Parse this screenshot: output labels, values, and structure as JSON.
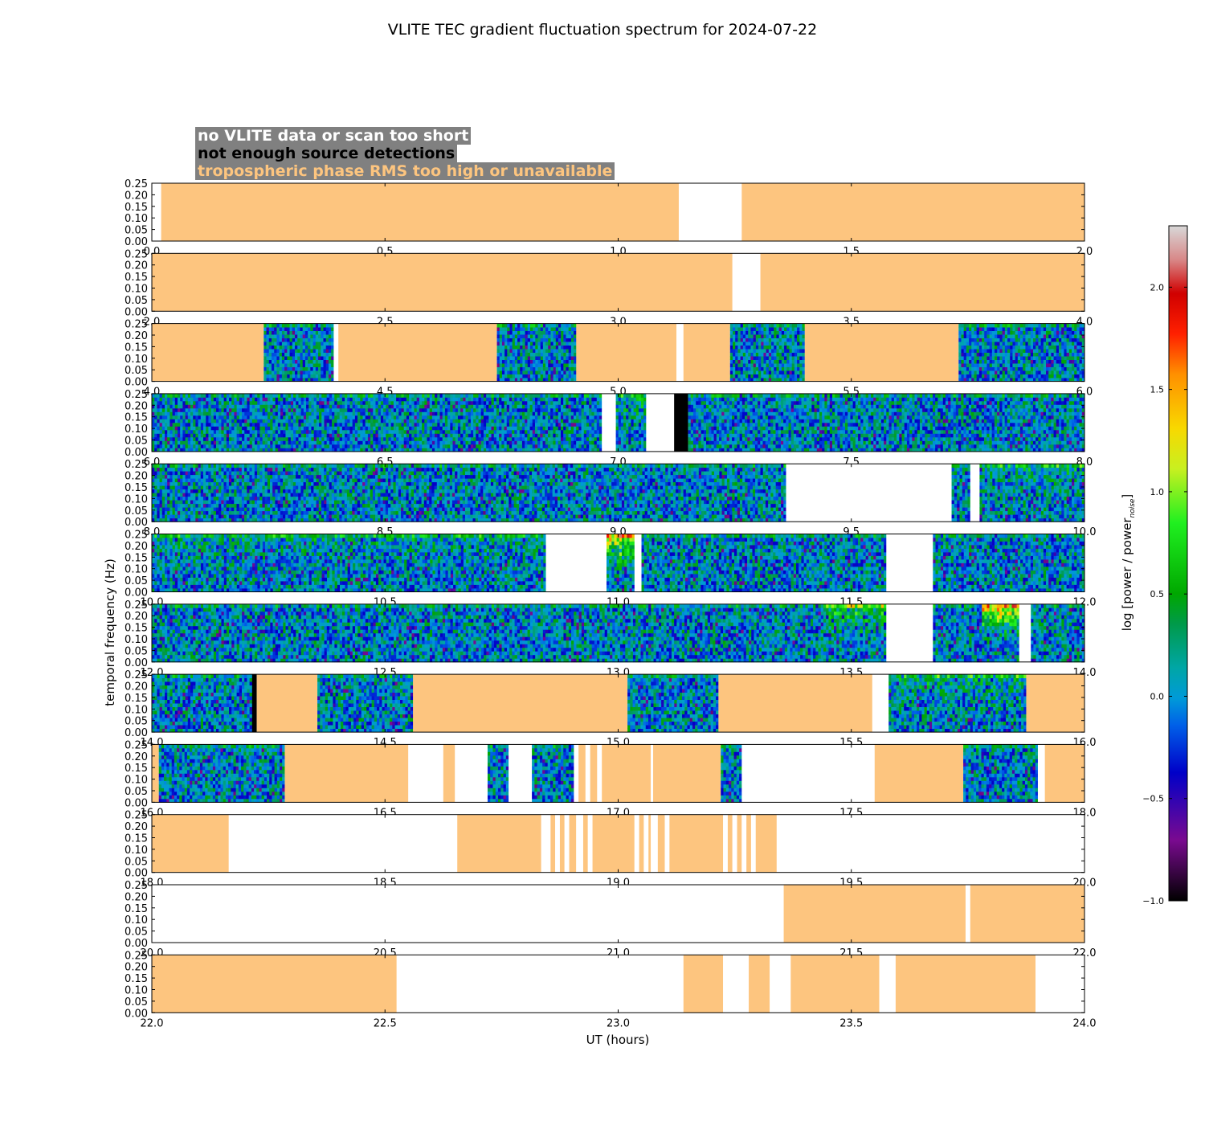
{
  "chart_data": {
    "type": "heatmap",
    "title": "VLITE TEC gradient fluctuation spectrum for 2024-07-22",
    "xlabel": "UT (hours)",
    "ylabel": "temporal frequency (Hz)",
    "colorbar_label": "log [power / power",
    "colorbar_label_sub": "noise",
    "colorbar_label_end": "]",
    "colorbar_range": [
      -1.0,
      2.3
    ],
    "colorbar_ticks": [
      "−1.0",
      "−0.5",
      "0.0",
      "0.5",
      "1.0",
      "1.5",
      "2.0"
    ],
    "colorbar_tick_values": [
      -1.0,
      -0.5,
      0.0,
      0.5,
      1.0,
      1.5,
      2.0
    ],
    "ylim": [
      0,
      0.25
    ],
    "y_ticks": [
      "0.00",
      "0.05",
      "0.10",
      "0.15",
      "0.20",
      "0.25"
    ],
    "legend": [
      {
        "label": "no VLITE data or scan too short",
        "color": "#ffffff"
      },
      {
        "label": "not enough source detections",
        "color": "#000000"
      },
      {
        "label": "tropospheric phase RMS too high or unavailable",
        "color": "#fdc57f"
      }
    ],
    "panels": [
      {
        "xlim": [
          0,
          2
        ],
        "xticks": [
          "0.0",
          "0.5",
          "1.0",
          "1.5",
          "2.0"
        ],
        "segments": [
          [
            0,
            0.02,
            "n"
          ],
          [
            0.02,
            1.13,
            "t"
          ],
          [
            1.13,
            1.265,
            "n"
          ],
          [
            1.265,
            2.0,
            "t"
          ]
        ]
      },
      {
        "xlim": [
          2,
          4
        ],
        "xticks": [
          "2.0",
          "2.5",
          "3.0",
          "3.5",
          "4.0"
        ],
        "segments": [
          [
            2.0,
            3.245,
            "t"
          ],
          [
            3.245,
            3.305,
            "n"
          ],
          [
            3.305,
            4.0,
            "t"
          ]
        ]
      },
      {
        "xlim": [
          4,
          6
        ],
        "xticks": [
          "4.0",
          "4.5",
          "5.0",
          "5.5",
          "6.0"
        ],
        "segments": [
          [
            4.0,
            4.24,
            "t"
          ],
          [
            4.24,
            4.39,
            "d"
          ],
          [
            4.39,
            4.4,
            "n"
          ],
          [
            4.4,
            4.74,
            "t"
          ],
          [
            4.74,
            4.91,
            "d"
          ],
          [
            4.91,
            5.125,
            "t"
          ],
          [
            5.125,
            5.14,
            "n"
          ],
          [
            5.14,
            5.24,
            "t"
          ],
          [
            5.24,
            5.4,
            "d"
          ],
          [
            5.4,
            5.73,
            "t"
          ],
          [
            5.73,
            6.0,
            "d"
          ]
        ]
      },
      {
        "xlim": [
          6,
          8
        ],
        "xticks": [
          "6.0",
          "6.5",
          "7.0",
          "7.5",
          "8.0"
        ],
        "segments": [
          [
            6.0,
            6.965,
            "d"
          ],
          [
            6.965,
            6.995,
            "n"
          ],
          [
            6.995,
            7.06,
            "d",
            0.4
          ],
          [
            7.06,
            7.12,
            "n"
          ],
          [
            7.12,
            7.15,
            "k"
          ],
          [
            7.15,
            8.0,
            "d"
          ]
        ]
      },
      {
        "xlim": [
          8,
          10
        ],
        "xticks": [
          "8.0",
          "8.5",
          "9.0",
          "9.5",
          "10.0"
        ],
        "segments": [
          [
            8.0,
            9.36,
            "d"
          ],
          [
            9.36,
            9.715,
            "n"
          ],
          [
            9.715,
            9.755,
            "d"
          ],
          [
            9.755,
            9.775,
            "n"
          ],
          [
            9.775,
            10.0,
            "d",
            0.3
          ]
        ]
      },
      {
        "xlim": [
          10,
          12
        ],
        "xticks": [
          "10.0",
          "10.5",
          "11.0",
          "11.5",
          "12.0"
        ],
        "segments": [
          [
            10.0,
            10.845,
            "d",
            0.2
          ],
          [
            10.845,
            10.975,
            "n"
          ],
          [
            10.975,
            11.035,
            "d",
            1.5
          ],
          [
            11.035,
            11.05,
            "n"
          ],
          [
            11.05,
            11.575,
            "d"
          ],
          [
            11.575,
            11.675,
            "n"
          ],
          [
            11.675,
            12.0,
            "d"
          ]
        ]
      },
      {
        "xlim": [
          12,
          14
        ],
        "xticks": [
          "12.0",
          "12.5",
          "13.0",
          "13.5",
          "14.0"
        ],
        "segments": [
          [
            12.0,
            13.44,
            "d"
          ],
          [
            13.44,
            13.575,
            "d",
            0.7
          ],
          [
            13.575,
            13.675,
            "n"
          ],
          [
            13.675,
            13.78,
            "d"
          ],
          [
            13.78,
            13.86,
            "d",
            1.5
          ],
          [
            13.86,
            13.885,
            "n"
          ],
          [
            13.885,
            14.0,
            "d"
          ]
        ]
      },
      {
        "xlim": [
          14,
          16
        ],
        "xticks": [
          "14.0",
          "14.5",
          "15.0",
          "15.5",
          "16.0"
        ],
        "segments": [
          [
            14.0,
            14.215,
            "d"
          ],
          [
            14.215,
            14.225,
            "k"
          ],
          [
            14.225,
            14.355,
            "t"
          ],
          [
            14.355,
            14.56,
            "d"
          ],
          [
            14.56,
            15.02,
            "t"
          ],
          [
            15.02,
            15.215,
            "d"
          ],
          [
            15.215,
            15.545,
            "t"
          ],
          [
            15.545,
            15.58,
            "n"
          ],
          [
            15.58,
            15.875,
            "d",
            0.3
          ],
          [
            15.875,
            16.0,
            "t"
          ]
        ]
      },
      {
        "xlim": [
          16,
          18
        ],
        "xticks": [
          "16.0",
          "16.5",
          "17.0",
          "17.5",
          "18.0"
        ],
        "segments": [
          [
            16.0,
            16.015,
            "t"
          ],
          [
            16.015,
            16.285,
            "d"
          ],
          [
            16.285,
            16.55,
            "t"
          ],
          [
            16.55,
            16.625,
            "n"
          ],
          [
            16.625,
            16.65,
            "t"
          ],
          [
            16.65,
            16.72,
            "n"
          ],
          [
            16.72,
            16.765,
            "d"
          ],
          [
            16.765,
            16.815,
            "n"
          ],
          [
            16.815,
            16.905,
            "d"
          ],
          [
            16.905,
            16.915,
            "n"
          ],
          [
            16.915,
            16.93,
            "t"
          ],
          [
            16.93,
            16.94,
            "n"
          ],
          [
            16.94,
            16.955,
            "t"
          ],
          [
            16.955,
            16.965,
            "n"
          ],
          [
            16.965,
            17.07,
            "t"
          ],
          [
            17.07,
            17.075,
            "n"
          ],
          [
            17.075,
            17.22,
            "t"
          ],
          [
            17.22,
            17.265,
            "d"
          ],
          [
            17.265,
            17.55,
            "n"
          ],
          [
            17.55,
            17.74,
            "t"
          ],
          [
            17.74,
            17.9,
            "d"
          ],
          [
            17.9,
            17.915,
            "n"
          ],
          [
            17.915,
            18.0,
            "t"
          ]
        ]
      },
      {
        "xlim": [
          18,
          20
        ],
        "xticks": [
          "18.0",
          "18.5",
          "19.0",
          "19.5",
          "20.0"
        ],
        "segments": [
          [
            18.0,
            18.165,
            "t"
          ],
          [
            18.165,
            18.655,
            "n"
          ],
          [
            18.655,
            18.835,
            "t"
          ],
          [
            18.835,
            18.855,
            "n"
          ],
          [
            18.855,
            18.865,
            "t"
          ],
          [
            18.865,
            18.875,
            "n"
          ],
          [
            18.875,
            18.885,
            "t"
          ],
          [
            18.885,
            18.895,
            "n"
          ],
          [
            18.895,
            18.91,
            "t"
          ],
          [
            18.91,
            18.925,
            "n"
          ],
          [
            18.925,
            18.935,
            "t"
          ],
          [
            18.935,
            18.945,
            "n"
          ],
          [
            18.945,
            19.035,
            "t"
          ],
          [
            19.035,
            19.045,
            "n"
          ],
          [
            19.045,
            19.055,
            "t"
          ],
          [
            19.055,
            19.065,
            "n"
          ],
          [
            19.065,
            19.07,
            "t"
          ],
          [
            19.07,
            19.085,
            "n"
          ],
          [
            19.085,
            19.1,
            "t"
          ],
          [
            19.1,
            19.11,
            "n"
          ],
          [
            19.11,
            19.225,
            "t"
          ],
          [
            19.225,
            19.235,
            "n"
          ],
          [
            19.235,
            19.245,
            "t"
          ],
          [
            19.245,
            19.255,
            "n"
          ],
          [
            19.255,
            19.265,
            "t"
          ],
          [
            19.265,
            19.275,
            "n"
          ],
          [
            19.275,
            19.285,
            "t"
          ],
          [
            19.285,
            19.295,
            "n"
          ],
          [
            19.295,
            19.34,
            "t"
          ],
          [
            19.34,
            20.0,
            "n"
          ]
        ]
      },
      {
        "xlim": [
          20,
          22
        ],
        "xticks": [
          "20.0",
          "20.5",
          "21.0",
          "21.5",
          "22.0"
        ],
        "segments": [
          [
            20.0,
            21.355,
            "n"
          ],
          [
            21.355,
            21.745,
            "t"
          ],
          [
            21.745,
            21.755,
            "n"
          ],
          [
            21.755,
            22.0,
            "t"
          ]
        ]
      },
      {
        "xlim": [
          22,
          24
        ],
        "xticks": [
          "22.0",
          "22.5",
          "23.0",
          "23.5",
          "24.0"
        ],
        "segments": [
          [
            22.0,
            22.525,
            "t"
          ],
          [
            22.525,
            23.14,
            "n"
          ],
          [
            23.14,
            23.225,
            "t"
          ],
          [
            23.225,
            23.28,
            "n"
          ],
          [
            23.28,
            23.325,
            "t"
          ],
          [
            23.325,
            23.37,
            "n"
          ],
          [
            23.37,
            23.56,
            "t"
          ],
          [
            23.56,
            23.595,
            "n"
          ],
          [
            23.595,
            23.895,
            "t"
          ],
          [
            23.895,
            24.0,
            "n"
          ]
        ]
      }
    ]
  }
}
